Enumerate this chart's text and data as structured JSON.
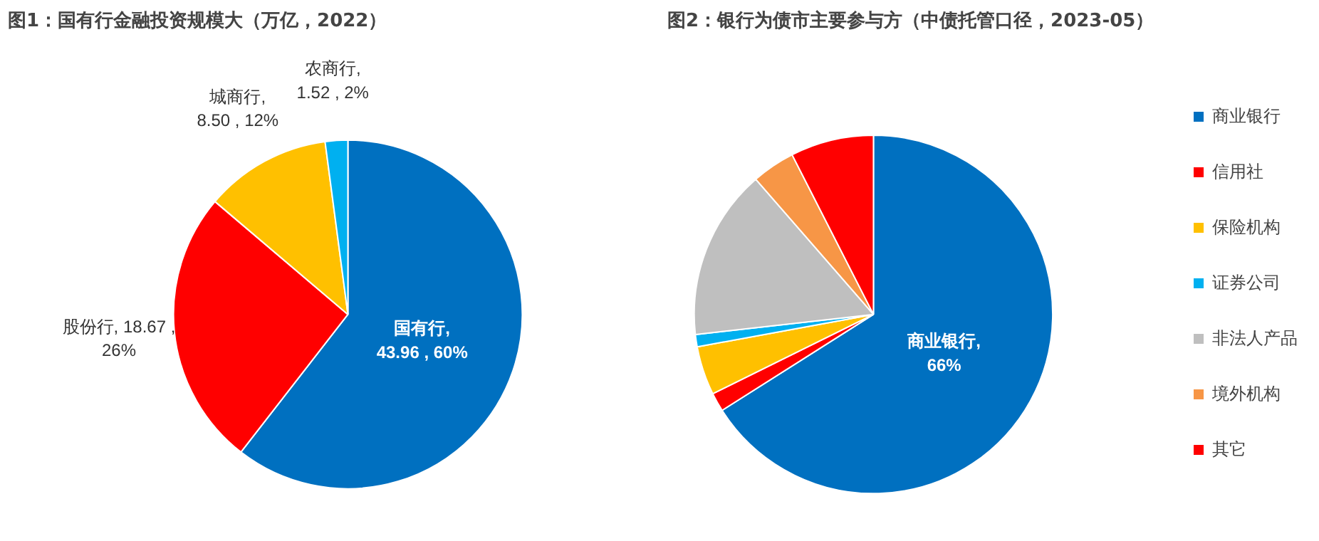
{
  "chart_data": [
    {
      "type": "pie",
      "title": "图1：国有行金融投资规模大（万亿，2022）",
      "categories": [
        "国有行",
        "股份行",
        "城商行",
        "农商行"
      ],
      "values": [
        43.96,
        18.67,
        8.5,
        1.52
      ],
      "colors": [
        "#0070c0",
        "#ff0000",
        "#ffc000",
        "#00b0f0"
      ],
      "value_labels": [
        ",\n43.96 , 60%",
        ", 18.67 ,\n26%",
        ",\n8.50 , 12%",
        ",\n1.52 , 2%"
      ],
      "legend": false
    },
    {
      "type": "pie",
      "title": "图2：银行为债市主要参与方（中债托管口径，2023-05）",
      "categories": [
        "商业银行",
        "信用社",
        "保险机构",
        "证券公司",
        "非法人产品",
        "境外机构",
        "其它"
      ],
      "values": [
        66,
        1.7,
        4.4,
        1.1,
        15.4,
        3.9,
        7.5
      ],
      "colors": [
        "#0070c0",
        "#ff0000",
        "#ffc000",
        "#00b0f0",
        "#bfbfbf",
        "#f79646",
        "#ff0000"
      ],
      "value_labels": [
        ",\n66%",
        null,
        null,
        null,
        null,
        null,
        null
      ],
      "legend": "right"
    }
  ]
}
